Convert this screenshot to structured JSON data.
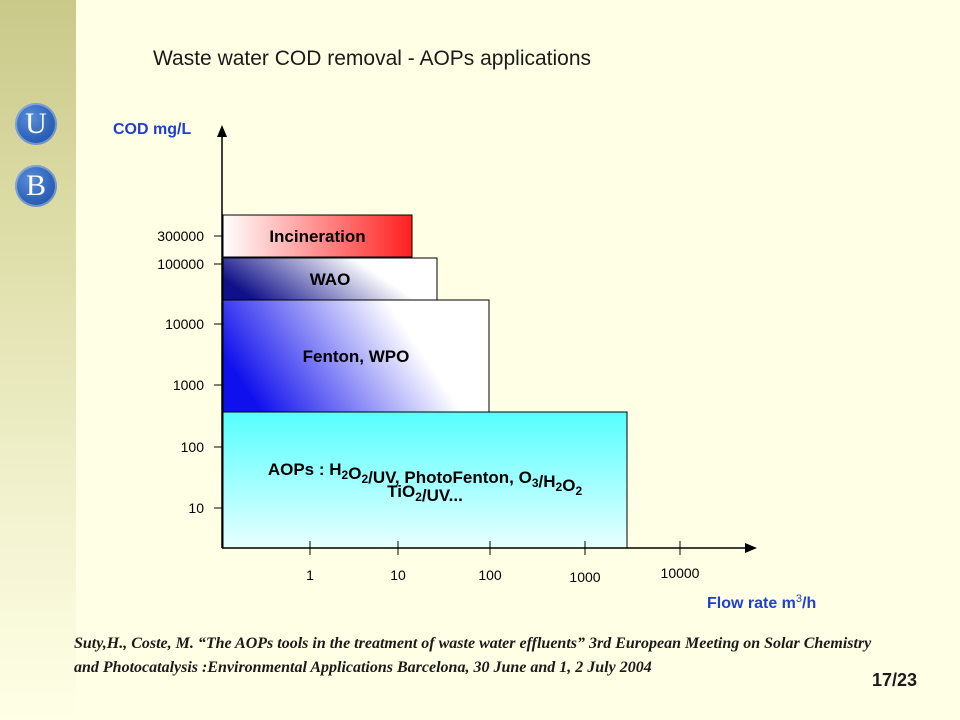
{
  "title": "Waste water COD removal - AOPs applications",
  "logo": {
    "letter_top": "U",
    "letter_bottom": "B",
    "color": "#2f64bb"
  },
  "chart_data": {
    "type": "bar",
    "xlabel_prefix": "Flow rate m",
    "xlabel_sup": "3",
    "xlabel_suffix": "/h",
    "ylabel": "COD mg/L",
    "x_ticks": [
      "1",
      "10",
      "100",
      "1000",
      "10000"
    ],
    "y_ticks": [
      "10",
      "100",
      "1000",
      "10000",
      "100000",
      "300000"
    ],
    "x_scale": "log",
    "y_scale": "log",
    "bands": [
      {
        "name": "AOPs",
        "label_line1": [
          {
            "t": "AOPs : H"
          },
          {
            "t": "2",
            "sub": true
          },
          {
            "t": "O"
          },
          {
            "t": "2",
            "sub": true
          },
          {
            "t": "/UV, PhotoFenton, O"
          },
          {
            "t": "3",
            "sub": true
          },
          {
            "t": "/H"
          },
          {
            "t": "2",
            "sub": true
          },
          {
            "t": "O"
          },
          {
            "t": "2",
            "sub": true
          }
        ],
        "label_line2": [
          {
            "t": "TiO"
          },
          {
            "t": "2",
            "sub": true
          },
          {
            "t": "/UV..."
          }
        ],
        "cod_range": [
          1,
          100
        ],
        "flow_max": 3000,
        "colors": [
          "#55ffff",
          "#e8ffff"
        ]
      },
      {
        "name": "Fenton, WPO",
        "label_line1": [
          {
            "t": "Fenton, WPO"
          }
        ],
        "label_line2": [],
        "cod_range": [
          100,
          30000
        ],
        "flow_max": 100,
        "colors": [
          "#1010ee",
          "#ffffff"
        ]
      },
      {
        "name": "WAO",
        "label_line1": [
          {
            "t": "WAO"
          }
        ],
        "label_line2": [],
        "cod_range": [
          30000,
          200000
        ],
        "flow_max": 40,
        "colors": [
          "#10108a",
          "#ffffff"
        ]
      },
      {
        "name": "Incineration",
        "label_line1": [
          {
            "t": "Incineration"
          }
        ],
        "label_line2": [],
        "cod_range": [
          200000,
          700000
        ],
        "flow_max": 15,
        "colors": [
          "#ff2020",
          "#ffffff"
        ]
      }
    ]
  },
  "citation": "Suty,H., Coste, M. “The AOPs tools in  the treatment of waste water effluents” 3rd European Meeting on Solar Chemistry  and Photocatalysis :Environmental Applications Barcelona, 30 June and 1, 2 July 2004",
  "page_number": "17/23"
}
